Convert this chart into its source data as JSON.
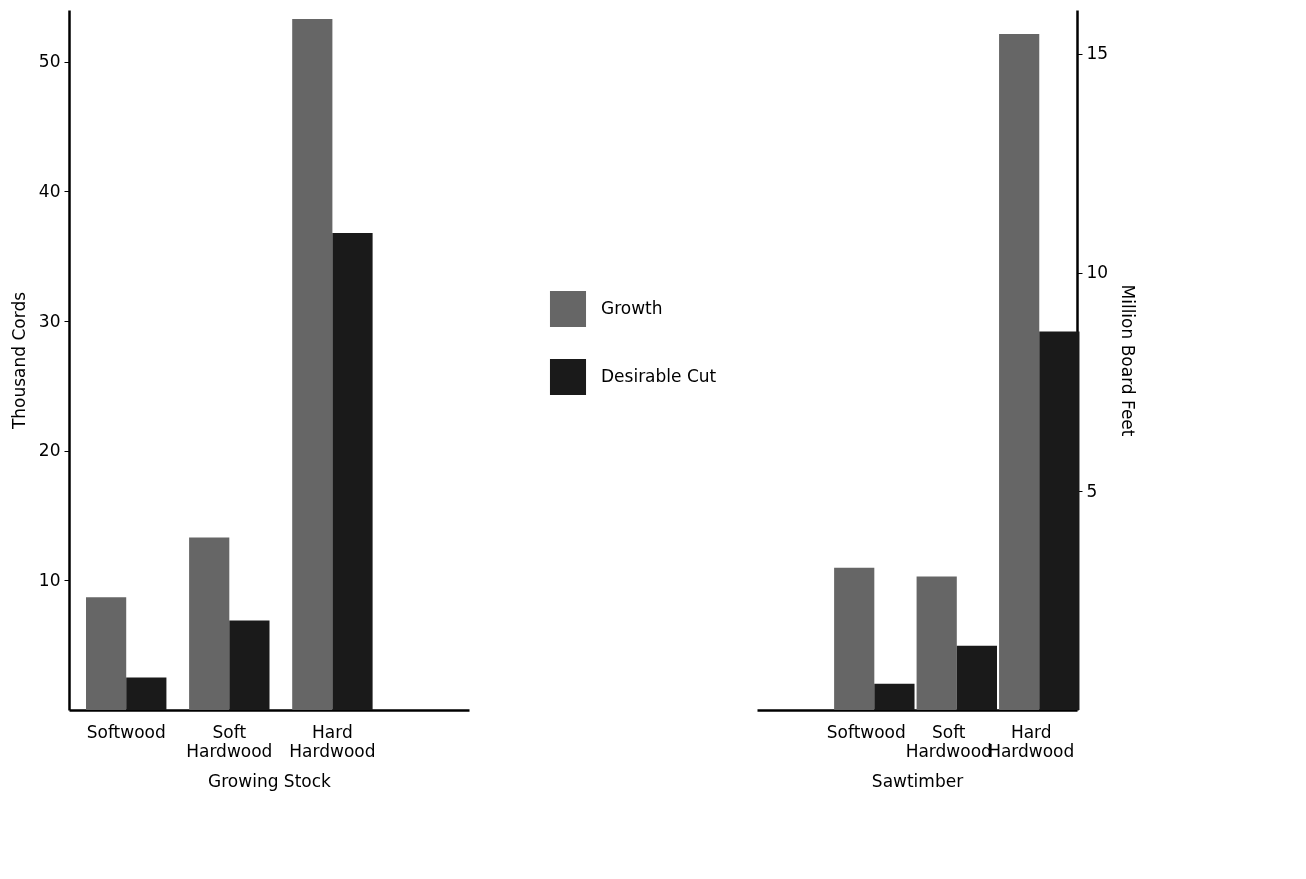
{
  "chart_data": [
    {
      "type": "bar",
      "xlabel": "Growing Stock",
      "ylabel": "Thousand Cords",
      "categories": [
        "Softwood",
        "Soft Hardwood",
        "Hard Hardwood"
      ],
      "series": [
        {
          "name": "Growth",
          "color": "#666666",
          "values": [
            8.7,
            13.3,
            53.3
          ]
        },
        {
          "name": "Desirable Cut",
          "color": "#1a1a1a",
          "values": [
            2.5,
            6.9,
            36.8
          ]
        }
      ],
      "ylim": [
        0,
        54
      ],
      "yticks": [
        10,
        20,
        30,
        40,
        50
      ],
      "grid": false,
      "legend": "right"
    },
    {
      "type": "bar",
      "xlabel": "Sawtimber",
      "ylabel": "Million Board Feet",
      "categories": [
        "Softwood",
        "Soft Hardwood",
        "Hard Hardwood"
      ],
      "series": [
        {
          "color": "#666666",
          "values": [
            3.25,
            3.05,
            15.45
          ]
        },
        {
          "color": "#1a1a1a",
          "values": [
            0.6,
            1.47,
            8.65
          ]
        }
      ],
      "ylim": [
        0,
        16
      ],
      "yticks": [
        5,
        10,
        15
      ],
      "grid": false
    }
  ]
}
